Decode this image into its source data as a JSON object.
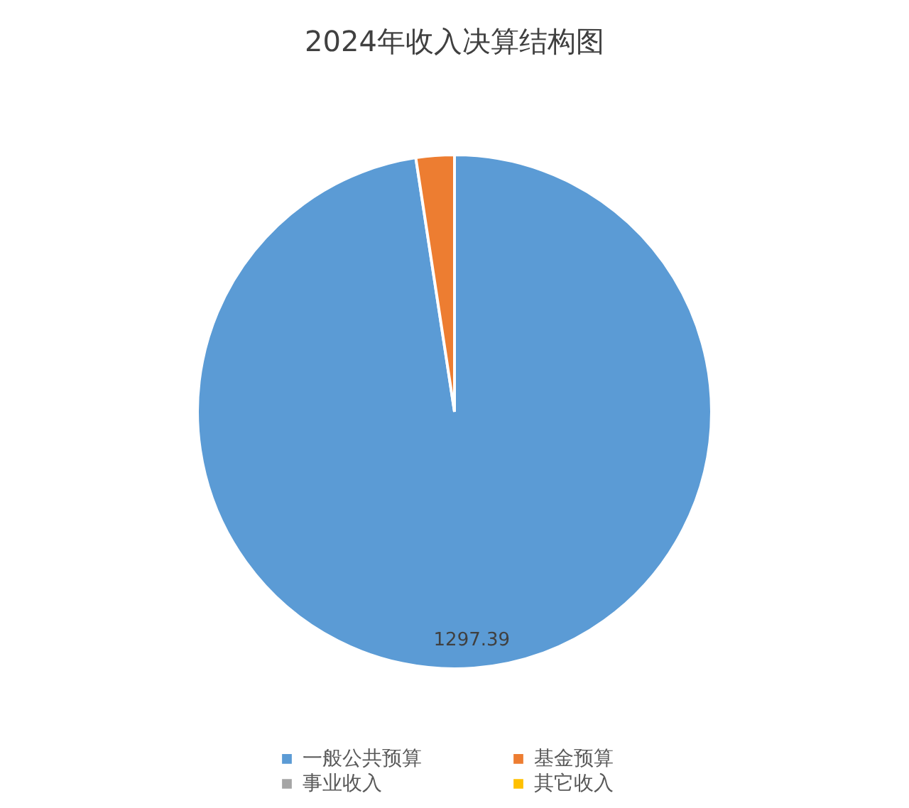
{
  "chart_data": {
    "type": "pie",
    "title": "2024年收入决算结构图",
    "categories": [
      "一般公共预算",
      "基金预算",
      "事业收入",
      "其它收入"
    ],
    "values": [
      1297.39,
      32,
      0,
      0
    ],
    "colors": [
      "#5b9bd5",
      "#ed7d31",
      "#a5a5a5",
      "#ffc000"
    ],
    "value_labels": [
      "1297.39",
      null,
      null,
      null
    ],
    "legend": "bottom"
  }
}
